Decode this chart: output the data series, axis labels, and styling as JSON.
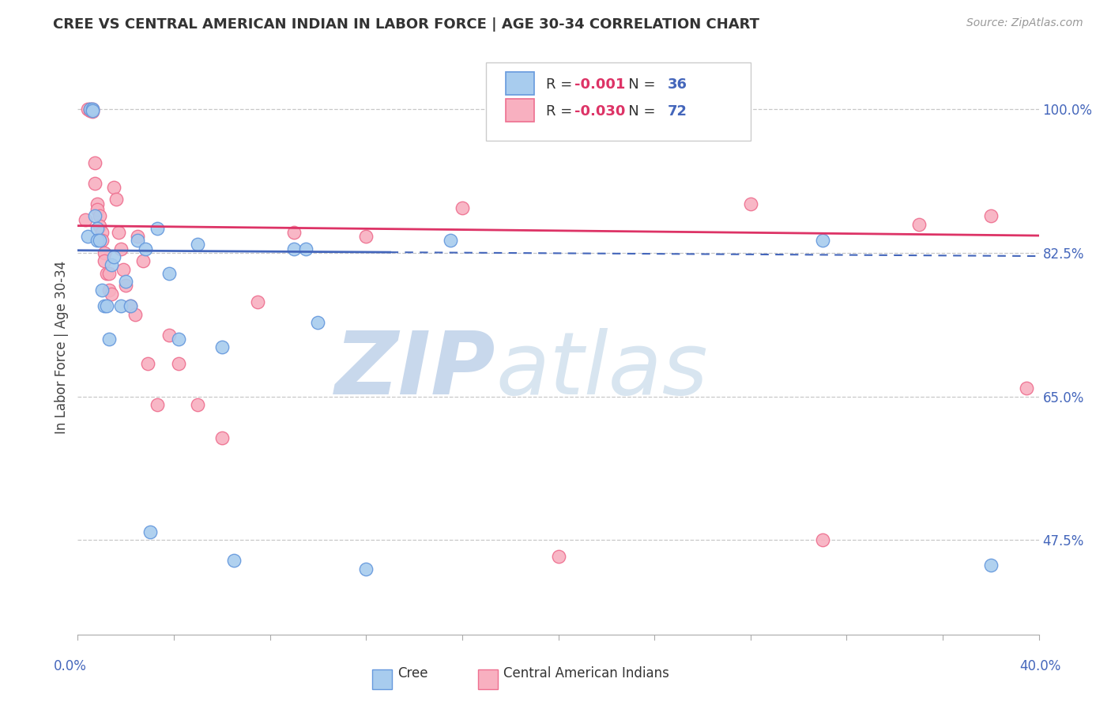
{
  "title": "CREE VS CENTRAL AMERICAN INDIAN IN LABOR FORCE | AGE 30-34 CORRELATION CHART",
  "source": "Source: ZipAtlas.com",
  "ylabel": "In Labor Force | Age 30-34",
  "legend_r_cree": "-0.001",
  "legend_n_cree": "36",
  "legend_r_cai": "-0.030",
  "legend_n_cai": "72",
  "cree_color": "#A8CCEE",
  "cai_color": "#F8B0C0",
  "cree_edge_color": "#6699DD",
  "cai_edge_color": "#EE7090",
  "cree_line_color": "#4466BB",
  "cai_line_color": "#DD3366",
  "r_color": "#DD3366",
  "n_color": "#4466BB",
  "xmin": 0.0,
  "xmax": 0.4,
  "ymin": 0.36,
  "ymax": 1.06,
  "yticks": [
    0.475,
    0.65,
    0.825,
    1.0
  ],
  "ytick_labels": [
    "47.5%",
    "65.0%",
    "82.5%",
    "100.0%"
  ],
  "cree_trend_y0": 0.828,
  "cree_trend_y1": 0.821,
  "cai_trend_y0": 0.858,
  "cai_trend_y1": 0.846,
  "cree_x": [
    0.004,
    0.005,
    0.006,
    0.006,
    0.007,
    0.008,
    0.008,
    0.009,
    0.01,
    0.011,
    0.012,
    0.013,
    0.014,
    0.015,
    0.018,
    0.02,
    0.022,
    0.025,
    0.028,
    0.03,
    0.033,
    0.038,
    0.042,
    0.05,
    0.06,
    0.065,
    0.09,
    0.095,
    0.1,
    0.12,
    0.155,
    0.31,
    0.38
  ],
  "cree_y": [
    0.845,
    1.0,
    1.0,
    0.998,
    0.87,
    0.855,
    0.84,
    0.84,
    0.78,
    0.76,
    0.76,
    0.72,
    0.81,
    0.82,
    0.76,
    0.79,
    0.76,
    0.84,
    0.83,
    0.485,
    0.855,
    0.8,
    0.72,
    0.835,
    0.71,
    0.45,
    0.83,
    0.83,
    0.74,
    0.44,
    0.84,
    0.84,
    0.445
  ],
  "cai_x": [
    0.003,
    0.004,
    0.005,
    0.005,
    0.006,
    0.006,
    0.007,
    0.007,
    0.008,
    0.008,
    0.009,
    0.009,
    0.01,
    0.01,
    0.011,
    0.011,
    0.012,
    0.013,
    0.013,
    0.014,
    0.015,
    0.016,
    0.017,
    0.018,
    0.019,
    0.02,
    0.022,
    0.024,
    0.025,
    0.027,
    0.029,
    0.033,
    0.038,
    0.042,
    0.05,
    0.06,
    0.075,
    0.09,
    0.12,
    0.16,
    0.2,
    0.28,
    0.31,
    0.35,
    0.38,
    0.395
  ],
  "cai_y": [
    0.865,
    1.0,
    1.0,
    0.998,
    1.0,
    0.997,
    0.935,
    0.91,
    0.885,
    0.878,
    0.87,
    0.858,
    0.85,
    0.84,
    0.825,
    0.815,
    0.8,
    0.8,
    0.78,
    0.775,
    0.905,
    0.89,
    0.85,
    0.83,
    0.805,
    0.785,
    0.76,
    0.75,
    0.845,
    0.815,
    0.69,
    0.64,
    0.725,
    0.69,
    0.64,
    0.6,
    0.765,
    0.85,
    0.845,
    0.88,
    0.455,
    0.885,
    0.475,
    0.86,
    0.87,
    0.66
  ]
}
